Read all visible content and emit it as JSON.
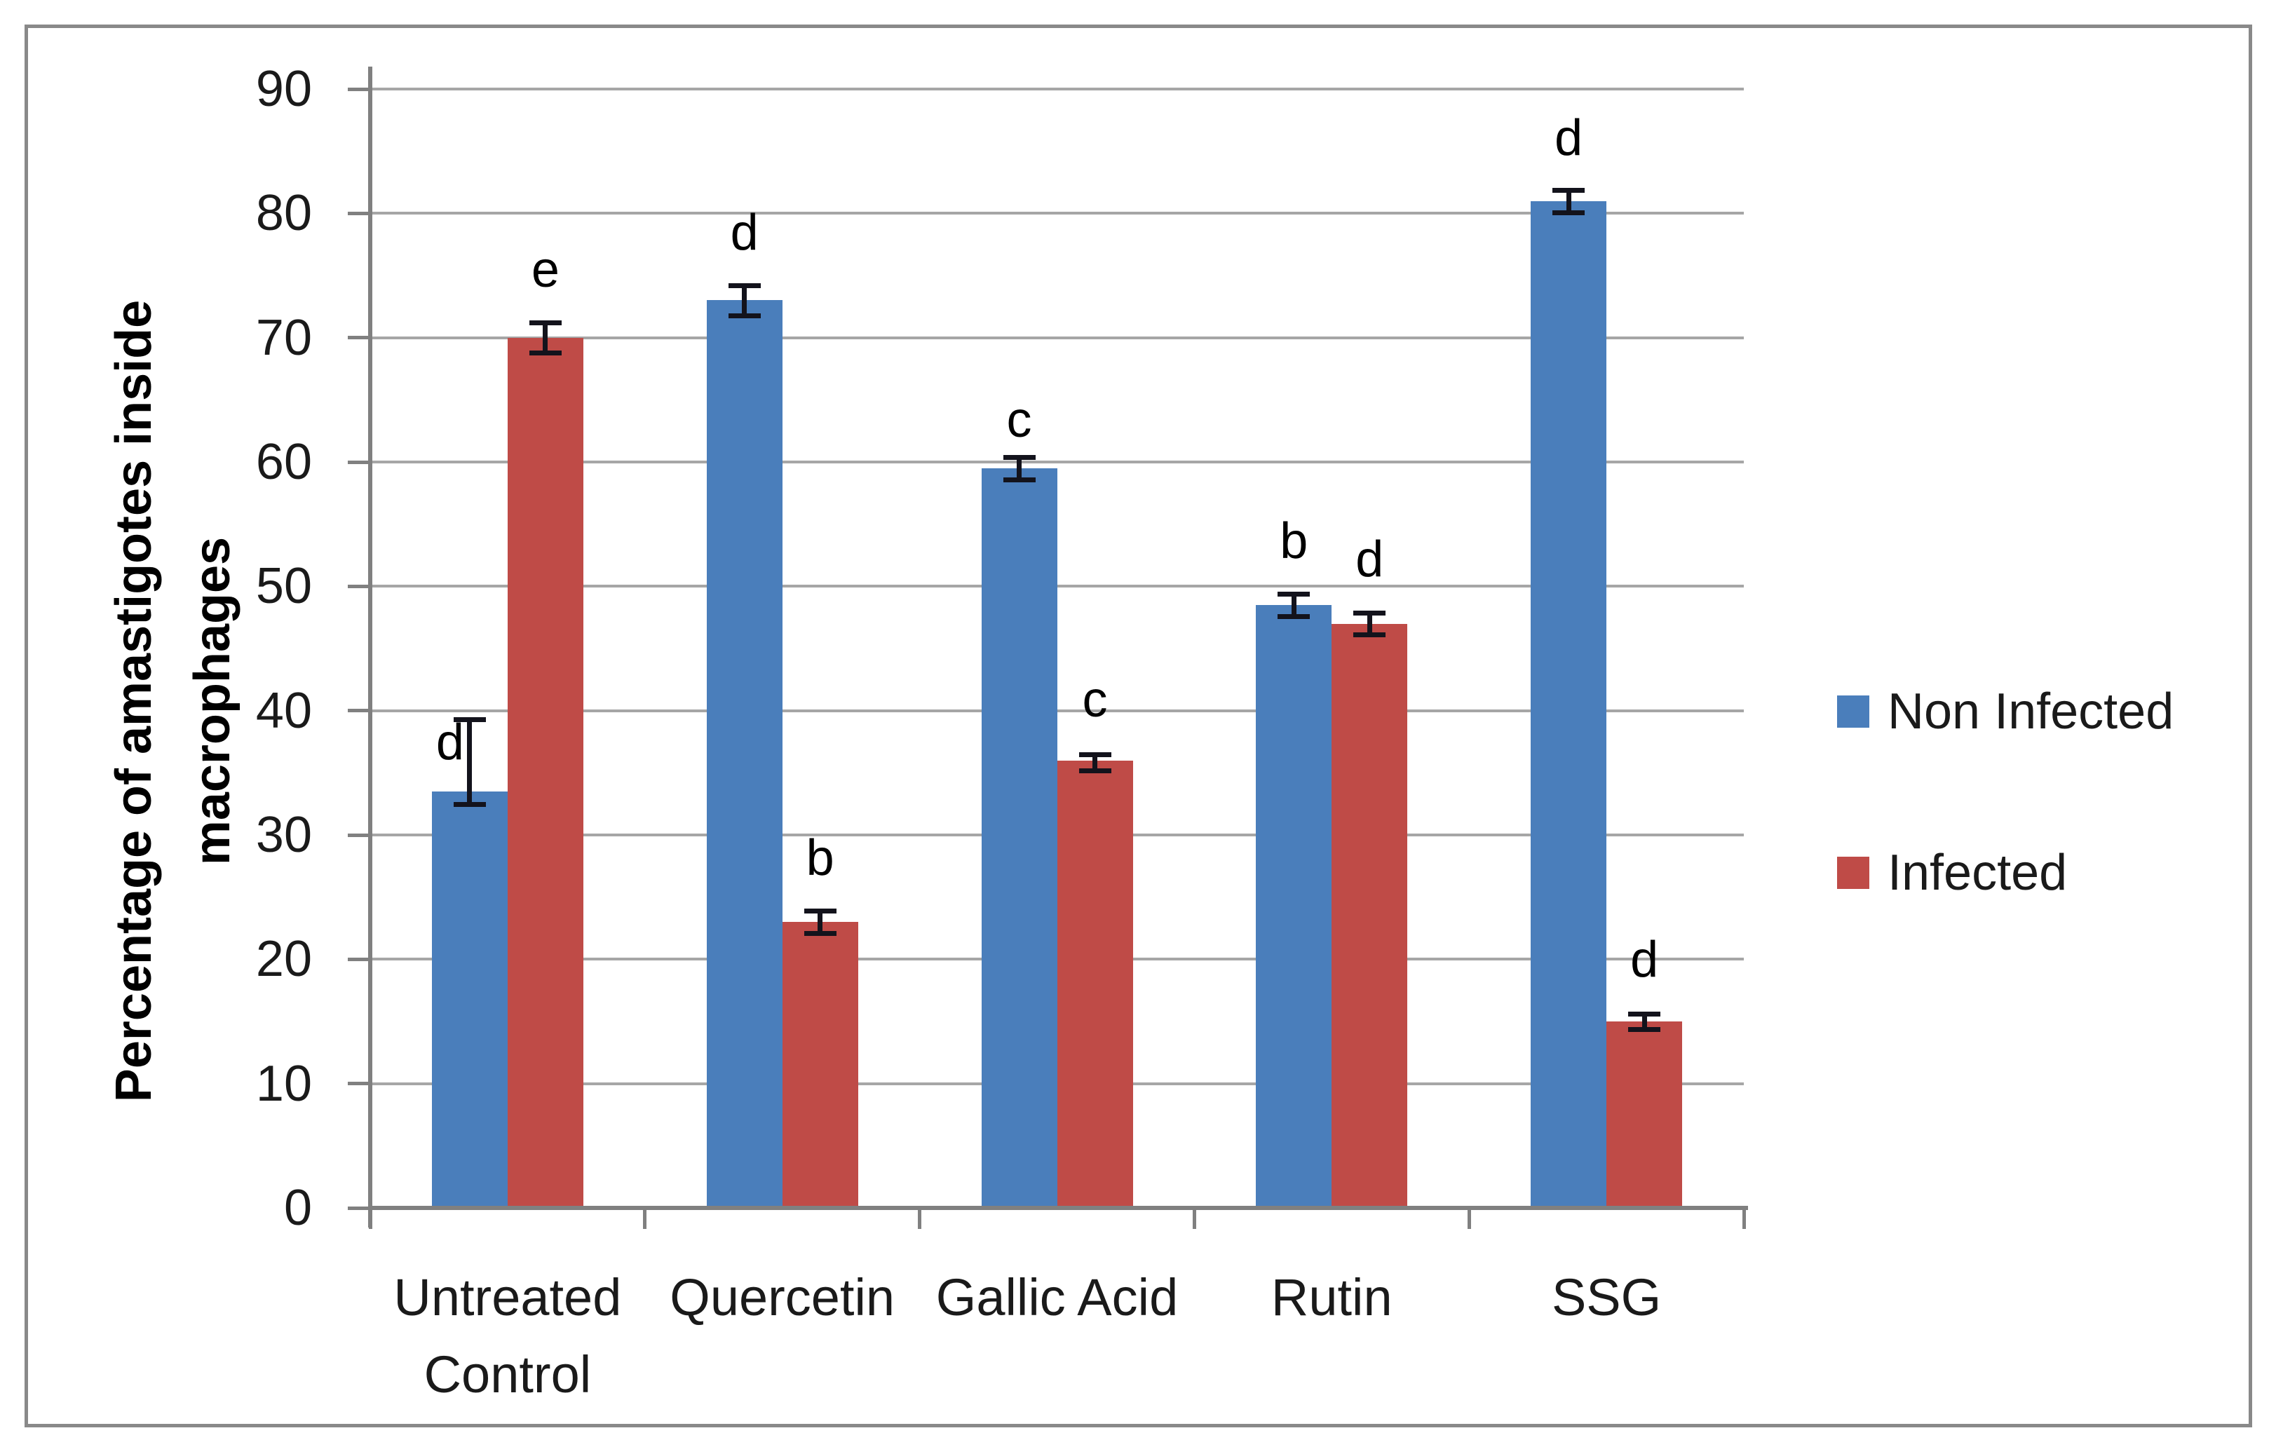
{
  "figure": {
    "background": "#ffffff",
    "border_color": "#898989"
  },
  "colors": {
    "non_infected": "#4a7ebb",
    "infected": "#bf4b47",
    "gridline": "#a6a6a6",
    "axis": "#808080",
    "error_bar": "#13131c",
    "text": "#1a1a1a"
  },
  "chart_data": {
    "type": "bar",
    "title": "",
    "xlabel": "",
    "ylabel": "Percentage of amastigotes inside macrophages",
    "ylabel_lines": [
      "Percentage of amastigotes inside",
      "macrophages"
    ],
    "ylim": [
      0,
      90
    ],
    "yticks": [
      0,
      10,
      20,
      30,
      40,
      50,
      60,
      70,
      80,
      90
    ],
    "grid": true,
    "legend_position": "right",
    "categories": [
      "Untreated Control",
      "Quercetin",
      "Gallic Acid",
      "Rutin",
      "SSG"
    ],
    "category_label_lines": [
      [
        "Untreated",
        "Control"
      ],
      [
        "Quercetin"
      ],
      [
        "Gallic Acid"
      ],
      [
        "Rutin"
      ],
      [
        "SSG"
      ]
    ],
    "series": [
      {
        "name": "Non Infected",
        "color": "#4a7ebb",
        "values": [
          33.5,
          73,
          59.5,
          48.5,
          81
        ],
        "error_up": [
          5.8,
          1.2,
          0.9,
          0.9,
          0.9
        ],
        "error_down": [
          1.0,
          1.2,
          0.9,
          0.9,
          0.9
        ],
        "labels": [
          "d",
          "d",
          "c",
          "b",
          "d"
        ],
        "label_v": [
          35.2,
          76.2,
          61.1,
          51.4,
          83.8
        ],
        "label_dx": [
          -28,
          0,
          0,
          0,
          0
        ]
      },
      {
        "name": "Infected",
        "color": "#bf4b47",
        "values": [
          70,
          23,
          36,
          47,
          15
        ],
        "error_up": [
          1.2,
          0.9,
          0.5,
          0.9,
          0.6
        ],
        "error_down": [
          1.2,
          0.9,
          0.8,
          0.9,
          0.6
        ],
        "labels": [
          "e",
          "b",
          "c",
          "d",
          "d"
        ],
        "label_v": [
          73.2,
          25.9,
          38.6,
          49.9,
          17.7
        ],
        "label_dx": [
          0,
          0,
          0,
          0,
          0
        ]
      }
    ]
  }
}
